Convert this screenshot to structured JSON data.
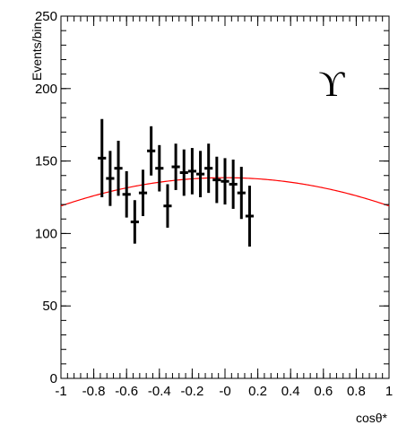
{
  "chart_data": {
    "type": "scatter",
    "title": "",
    "annotation": "ϒ",
    "xlabel": "cosθ*",
    "ylabel": "Events/bin",
    "xlim": [
      -1,
      1
    ],
    "ylim": [
      0,
      250
    ],
    "x_ticks": [
      -1,
      -0.8,
      -0.6,
      -0.4,
      -0.2,
      0,
      0.2,
      0.4,
      0.6,
      0.8,
      1
    ],
    "x_tick_labels": [
      "-1",
      "-0.8",
      "-0.6",
      "-0.4",
      "-0.2",
      "-0",
      "0.2",
      "0.4",
      "0.6",
      "0.8",
      "1"
    ],
    "y_ticks": [
      0,
      50,
      100,
      150,
      200,
      250
    ],
    "y_tick_labels": [
      "0",
      "50",
      "100",
      "150",
      "200",
      "250"
    ],
    "grid": false,
    "series": [
      {
        "color": "#000000",
        "x_halfwidth": 0.025,
        "points": [
          {
            "x": -0.75,
            "y": 152,
            "err": 27
          },
          {
            "x": -0.7,
            "y": 138,
            "err": 19
          },
          {
            "x": -0.65,
            "y": 145,
            "err": 19
          },
          {
            "x": -0.6,
            "y": 127,
            "err": 16
          },
          {
            "x": -0.55,
            "y": 108,
            "err": 15
          },
          {
            "x": -0.5,
            "y": 128,
            "err": 16
          },
          {
            "x": -0.45,
            "y": 157,
            "err": 17
          },
          {
            "x": -0.4,
            "y": 145,
            "err": 16
          },
          {
            "x": -0.35,
            "y": 119,
            "err": 15
          },
          {
            "x": -0.3,
            "y": 146,
            "err": 16
          },
          {
            "x": -0.25,
            "y": 142,
            "err": 16
          },
          {
            "x": -0.2,
            "y": 143,
            "err": 16
          },
          {
            "x": -0.15,
            "y": 141,
            "err": 16
          },
          {
            "x": -0.1,
            "y": 145,
            "err": 17
          },
          {
            "x": -0.05,
            "y": 137,
            "err": 16
          },
          {
            "x": 0.0,
            "y": 136,
            "err": 16
          },
          {
            "x": 0.05,
            "y": 134,
            "err": 17
          },
          {
            "x": 0.1,
            "y": 128,
            "err": 18
          },
          {
            "x": 0.15,
            "y": 112,
            "err": 21
          }
        ]
      }
    ],
    "fit_curve": {
      "color": "#ff0000",
      "a": 138.5,
      "b": -19.5
    }
  }
}
